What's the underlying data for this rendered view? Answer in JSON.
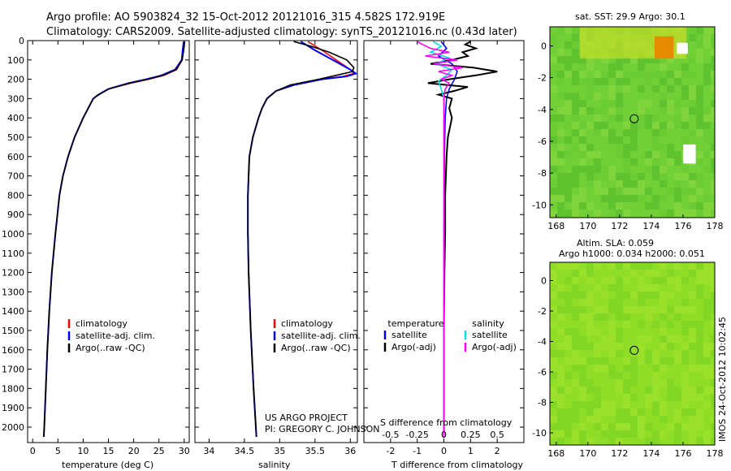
{
  "header": {
    "line1": "Argo profile: AO 5903824_32 15-Oct-2012 20121016_315 4.582S 172.919E",
    "line2": "Climatology: CARS2009. Satellite-adjusted climatology: synTS_20121016.nc (0.43d later)"
  },
  "colors": {
    "climatology": "#ff0000",
    "satellite": "#0000ff",
    "argo": "#000000",
    "salinity_satellite": "#00e0e0",
    "salinity_argo": "#ff00ff",
    "map_base": "#66cc33",
    "map_sst_warm": "#e68a00",
    "map_sla": "#88dd22"
  },
  "side_stamp": "IMOS 24-Oct-2012 10:02:45",
  "chart_data": [
    {
      "type": "line",
      "panel": "temperature",
      "xlabel": "temperature (deg C)",
      "ylabel": "",
      "xlim": [
        -1,
        31
      ],
      "ylim": [
        2080,
        0
      ],
      "xticks": [
        0,
        5,
        10,
        15,
        20,
        25,
        30
      ],
      "yticks": [
        0,
        100,
        200,
        300,
        400,
        500,
        600,
        700,
        800,
        900,
        1000,
        1100,
        1200,
        1300,
        1400,
        1500,
        1600,
        1700,
        1800,
        1900,
        2000
      ],
      "legend": [
        "climatology",
        "satellite-adj. clim.",
        "Argo(..raw -QC)"
      ],
      "series": [
        {
          "name": "climatology",
          "depth": [
            5,
            50,
            100,
            150,
            180,
            200,
            220,
            250,
            280,
            300,
            350,
            400,
            500,
            600,
            700,
            800,
            900,
            1000,
            1200,
            1400,
            1600,
            1800,
            2000,
            2050
          ],
          "values": [
            30.0,
            29.8,
            29.6,
            28.5,
            26.0,
            23.0,
            19.5,
            15.0,
            13.0,
            12.0,
            11.0,
            10.0,
            8.3,
            7.0,
            6.0,
            5.3,
            4.9,
            4.5,
            3.8,
            3.3,
            2.9,
            2.6,
            2.3,
            2.2
          ]
        },
        {
          "name": "satellite-adj. clim.",
          "depth": [
            5,
            50,
            100,
            150,
            180,
            200,
            220,
            250,
            280,
            300,
            350,
            400,
            500,
            600,
            700,
            800,
            900,
            1000,
            1200,
            1400,
            1600,
            1800,
            2000,
            2050
          ],
          "values": [
            29.9,
            29.7,
            29.5,
            28.2,
            25.5,
            22.5,
            19.0,
            15.0,
            13.0,
            12.0,
            11.0,
            10.0,
            8.3,
            7.0,
            6.0,
            5.3,
            4.9,
            4.5,
            3.8,
            3.3,
            2.9,
            2.6,
            2.3,
            2.2
          ]
        },
        {
          "name": "Argo(..raw -QC)",
          "depth": [
            5,
            50,
            100,
            150,
            180,
            200,
            220,
            250,
            280,
            300,
            350,
            400,
            500,
            600,
            700,
            800,
            900,
            1000,
            1200,
            1400,
            1600,
            1800,
            2000,
            2050
          ],
          "values": [
            30.1,
            29.9,
            29.6,
            28.4,
            25.8,
            22.8,
            19.2,
            15.1,
            13.1,
            12.0,
            11.0,
            10.0,
            8.3,
            7.0,
            6.0,
            5.3,
            4.9,
            4.5,
            3.8,
            3.3,
            2.9,
            2.6,
            2.3,
            2.2
          ]
        }
      ]
    },
    {
      "type": "line",
      "panel": "salinity",
      "xlabel": "salinity",
      "xlim": [
        33.8,
        36.1
      ],
      "ylim": [
        2080,
        0
      ],
      "xticks": [
        34,
        34.5,
        35,
        35.5,
        36
      ],
      "legend": [
        "climatology",
        "satellite-adj. clim.",
        "Argo(..raw -QC)"
      ],
      "annotation": [
        "US ARGO PROJECT",
        "PI: GREGORY C. JOHNSON"
      ],
      "series": [
        {
          "name": "climatology",
          "depth": [
            5,
            50,
            100,
            150,
            170,
            185,
            200,
            230,
            260,
            300,
            350,
            400,
            500,
            600,
            800,
            1000,
            1200,
            1500,
            1800,
            2050
          ],
          "values": [
            35.4,
            35.6,
            35.8,
            36.0,
            36.05,
            35.9,
            35.6,
            35.2,
            34.95,
            34.82,
            34.75,
            34.7,
            34.62,
            34.57,
            34.55,
            34.55,
            34.56,
            34.59,
            34.63,
            34.67
          ]
        },
        {
          "name": "satellite-adj. clim.",
          "depth": [
            5,
            50,
            100,
            150,
            170,
            185,
            200,
            230,
            260,
            300,
            350,
            400,
            500,
            600,
            800,
            1000,
            1200,
            1500,
            1800,
            2050
          ],
          "values": [
            35.3,
            35.5,
            35.75,
            36.0,
            36.08,
            35.95,
            35.6,
            35.2,
            34.95,
            34.82,
            34.75,
            34.7,
            34.62,
            34.57,
            34.55,
            34.55,
            34.56,
            34.59,
            34.63,
            34.67
          ]
        },
        {
          "name": "Argo(..raw -QC)",
          "depth": [
            5,
            30,
            60,
            100,
            140,
            160,
            180,
            200,
            230,
            260,
            300,
            350,
            400,
            500,
            600,
            800,
            1000,
            1200,
            1500,
            1800,
            2050
          ],
          "values": [
            35.2,
            35.45,
            35.7,
            35.95,
            36.05,
            36.03,
            35.8,
            35.55,
            35.15,
            34.95,
            34.82,
            34.75,
            34.7,
            34.62,
            34.57,
            34.55,
            34.55,
            34.56,
            34.59,
            34.63,
            34.67
          ]
        }
      ]
    },
    {
      "type": "line",
      "panel": "difference",
      "xlabel_top": "S difference from climatology",
      "xlabel": "T difference from climatology",
      "xlim": [
        -3,
        3
      ],
      "xticks": [
        -2,
        -1,
        0,
        1,
        2
      ],
      "xticks_top": [
        "-0.5",
        "-0.25",
        "0",
        "0.25",
        "0.5"
      ],
      "ylim": [
        2080,
        0
      ],
      "legend_headers": [
        "temperature",
        "salinity"
      ],
      "legend": [
        "satellite",
        "Argo(-adj)",
        "satellite",
        "Argo(-adj)"
      ],
      "series": [
        {
          "name": "satellite",
          "depth": [
            5,
            40,
            80,
            120,
            160,
            200,
            250,
            300,
            400,
            600,
            1000,
            1500,
            2050
          ],
          "values": [
            -0.1,
            0.1,
            -0.2,
            0.3,
            0.5,
            0.4,
            0.2,
            0.1,
            0.05,
            0.02,
            0.0,
            0.0,
            0.0
          ]
        },
        {
          "name": "Argo(-adj)",
          "depth": [
            5,
            20,
            40,
            60,
            80,
            100,
            120,
            140,
            160,
            180,
            200,
            220,
            240,
            260,
            280,
            300,
            350,
            400,
            500,
            600,
            800,
            1000,
            1200,
            1500,
            1800,
            2050
          ],
          "values": [
            1.0,
            0.8,
            1.2,
            0.7,
            0.9,
            0.3,
            -0.5,
            1.1,
            2.0,
            1.2,
            0.2,
            -0.6,
            0.9,
            0.4,
            -0.2,
            0.3,
            0.2,
            0.3,
            0.15,
            0.1,
            0.05,
            0.05,
            0.02,
            0.0,
            0.0,
            0.0
          ]
        },
        {
          "name": "satellite",
          "depth": [
            5,
            30,
            60,
            90,
            120,
            150,
            180,
            210,
            250,
            300,
            400,
            600,
            1000,
            2050
          ],
          "values": [
            -0.4,
            -0.1,
            -0.5,
            0.2,
            -0.3,
            0.3,
            0.1,
            -0.2,
            -0.1,
            0.0,
            0.0,
            0.0,
            0.0,
            0.0
          ]
        },
        {
          "name": "Argo(-adj)",
          "depth": [
            5,
            20,
            40,
            60,
            80,
            100,
            120,
            140,
            160,
            180,
            200,
            220,
            250,
            300,
            400,
            600,
            1000,
            2050
          ],
          "values": [
            -1.0,
            -0.8,
            -0.5,
            0.2,
            -0.7,
            0.5,
            -0.4,
            0.7,
            -0.2,
            0.3,
            -0.1,
            0.2,
            0.05,
            0.0,
            0.0,
            0.0,
            0.0,
            0.0
          ]
        }
      ]
    },
    {
      "type": "heatmap",
      "panel": "sst_map",
      "title": "sat. SST: 29.9 Argo: 30.1",
      "xticks": [
        168,
        170,
        172,
        174,
        176,
        178
      ],
      "yticks": [
        0,
        -2,
        -4,
        -6,
        -8,
        -10
      ],
      "xlim": [
        167.6,
        178.0
      ],
      "ylim": [
        -10.8,
        1.2
      ],
      "marker": {
        "lon": 172.919,
        "lat": -4.582
      }
    },
    {
      "type": "heatmap",
      "panel": "sla_map",
      "title_lines": [
        "Altim. SLA: 0.059",
        "Argo h1000: 0.034 h2000: 0.051"
      ],
      "xticks": [
        168,
        170,
        172,
        174,
        176,
        178
      ],
      "yticks": [
        0,
        -2,
        -4,
        -6,
        -8,
        -10
      ],
      "xlim": [
        167.6,
        178.0
      ],
      "ylim": [
        -10.8,
        1.2
      ],
      "marker": {
        "lon": 172.919,
        "lat": -4.582
      }
    }
  ]
}
